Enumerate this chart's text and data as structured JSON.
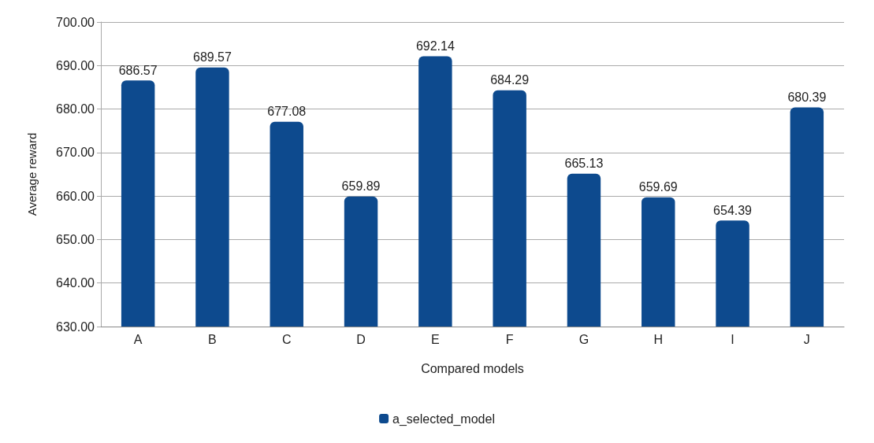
{
  "chart_data": {
    "type": "bar",
    "xlabel": "Compared models",
    "ylabel": "Average reward",
    "categories": [
      "A",
      "B",
      "C",
      "D",
      "E",
      "F",
      "G",
      "H",
      "I",
      "J"
    ],
    "series": [
      {
        "name": "a_selected_model",
        "color": "#0d4a8e",
        "values": [
          686.57,
          689.57,
          677.08,
          659.89,
          692.14,
          684.29,
          665.13,
          659.69,
          654.39,
          680.39
        ]
      }
    ],
    "ylim": [
      630,
      700
    ],
    "yticks": [
      {
        "value": 630,
        "label": "630.00"
      },
      {
        "value": 640,
        "label": "640.00"
      },
      {
        "value": 650,
        "label": "650.00"
      },
      {
        "value": 660,
        "label": "660.00"
      },
      {
        "value": 670,
        "label": "670.00"
      },
      {
        "value": 680,
        "label": "680.00"
      },
      {
        "value": 690,
        "label": "690.00"
      },
      {
        "value": 700,
        "label": "700.00"
      }
    ],
    "grid": "y",
    "legend": "bottom",
    "data_labels": true
  }
}
